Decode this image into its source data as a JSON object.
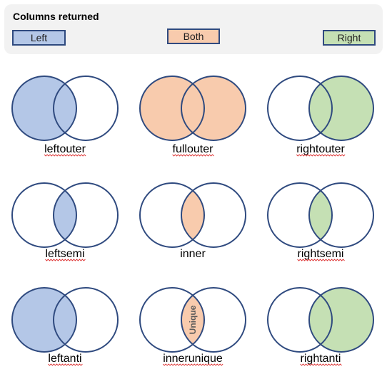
{
  "legend": {
    "title": "Columns returned",
    "items": [
      {
        "key": "left",
        "label": "Left",
        "color": "#b4c7e7"
      },
      {
        "key": "both",
        "label": "Both",
        "color": "#f8cbad"
      },
      {
        "key": "right",
        "label": "Right",
        "color": "#c5e0b4"
      }
    ]
  },
  "colors": {
    "outline": "#2f4a7f",
    "left": "#b4c7e7",
    "both": "#f8cbad",
    "right": "#c5e0b4",
    "spellcheck_underline": "#dd3333"
  },
  "joins": [
    {
      "label": "leftouter",
      "fill": "left-full",
      "color": "left",
      "spellcheck": true
    },
    {
      "label": "fullouter",
      "fill": "union",
      "color": "both",
      "spellcheck": true
    },
    {
      "label": "rightouter",
      "fill": "right-full",
      "color": "right",
      "spellcheck": true
    },
    {
      "label": "leftsemi",
      "fill": "lens",
      "color": "left",
      "spellcheck": true
    },
    {
      "label": "inner",
      "fill": "lens",
      "color": "both",
      "spellcheck": false
    },
    {
      "label": "rightsemi",
      "fill": "lens",
      "color": "right",
      "spellcheck": true
    },
    {
      "label": "leftanti",
      "fill": "left-only",
      "color": "left",
      "spellcheck": true
    },
    {
      "label": "innerunique",
      "fill": "lens",
      "color": "both",
      "spellcheck": true,
      "lens_text": "Unique"
    },
    {
      "label": "rightanti",
      "fill": "right-only",
      "color": "right",
      "spellcheck": true
    }
  ]
}
